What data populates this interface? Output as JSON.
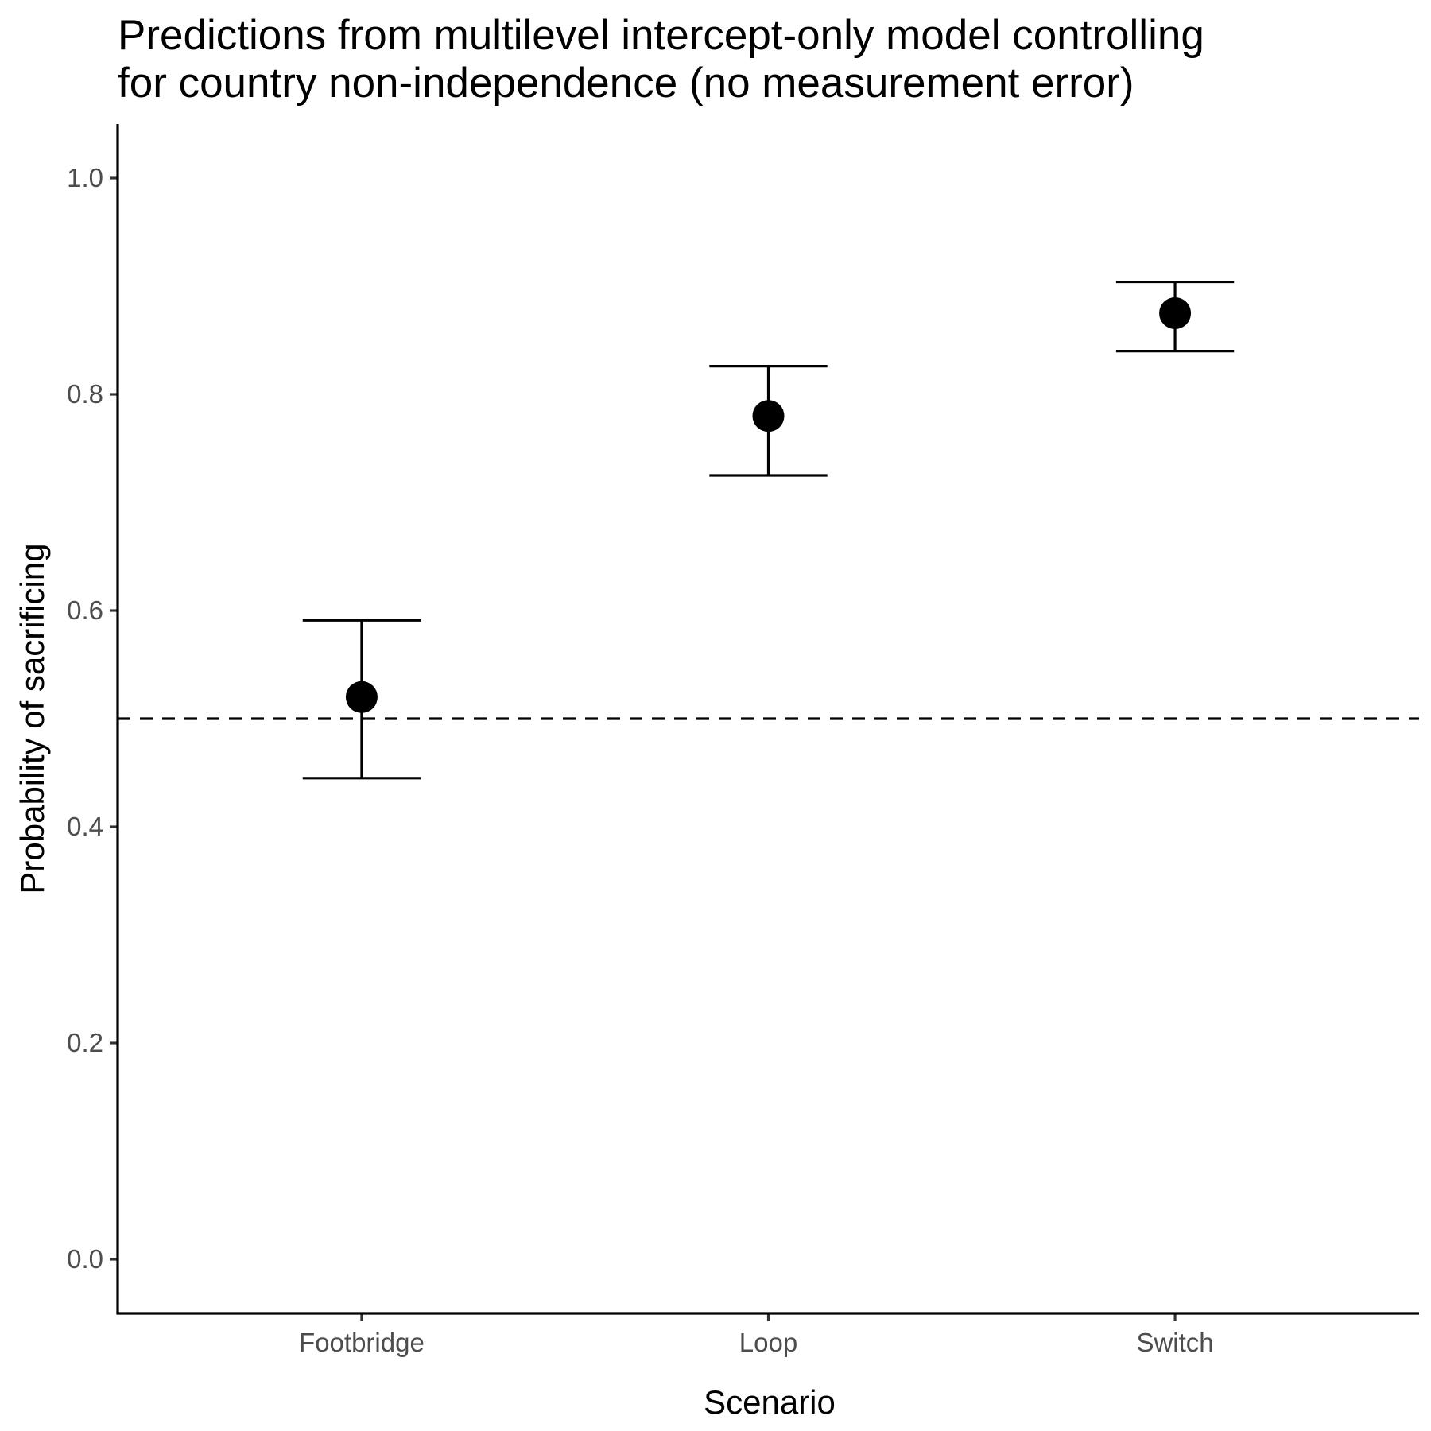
{
  "chart_data": {
    "type": "scatter",
    "title_lines": [
      "Predictions from multilevel intercept-only model controlling",
      "for country non-independence (no measurement error)"
    ],
    "xlabel": "Scenario",
    "ylabel": "Probability of sacrificing",
    "categories": [
      "Footbridge",
      "Loop",
      "Switch"
    ],
    "series": [
      {
        "values": [
          0.52,
          0.78,
          0.875
        ],
        "lower": [
          0.445,
          0.725,
          0.84
        ],
        "upper": [
          0.591,
          0.826,
          0.904
        ]
      }
    ],
    "ylim": [
      -0.05,
      1.05
    ],
    "yticks": [
      0.0,
      0.2,
      0.4,
      0.6,
      0.8,
      1.0
    ],
    "ytick_labels": [
      "0.0",
      "0.2",
      "0.4",
      "0.6",
      "0.8",
      "1.0"
    ],
    "reference_line": {
      "y": 0.5,
      "style": "dashed"
    },
    "grid": false,
    "legend": "none",
    "colors": {
      "points": "#000000",
      "axes": "#000000",
      "tick_labels": "#4d4d4d"
    }
  }
}
